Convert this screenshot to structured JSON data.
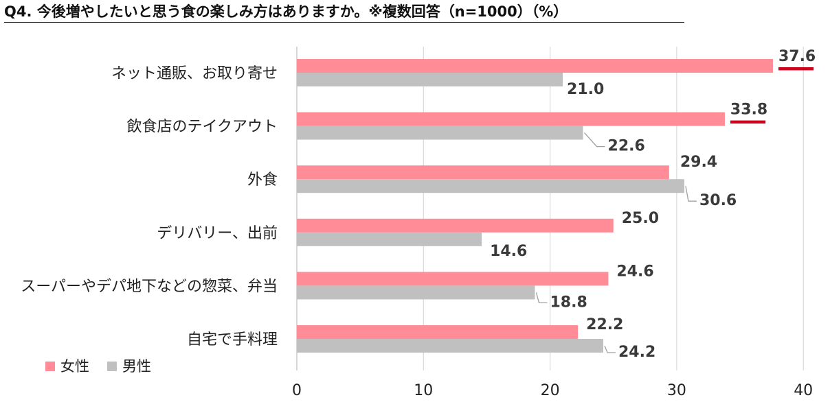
{
  "title": "Q4. 今後増やしたいと思う食の楽しみ方はありますか。※複数回答（n=1000）（%）",
  "chart_data": {
    "type": "bar",
    "orientation": "horizontal",
    "categories": [
      "ネット通販、お取り寄せ",
      "飲食店のテイクアウト",
      "外食",
      "デリバリー、出前",
      "スーパーやデパ地下などの惣菜、弁当",
      "自宅で手料理"
    ],
    "series": [
      {
        "name": "女性",
        "values": [
          37.6,
          33.8,
          29.4,
          25.0,
          24.6,
          22.2
        ],
        "color": "#ff8c96"
      },
      {
        "name": "男性",
        "values": [
          21.0,
          22.6,
          30.6,
          14.6,
          18.8,
          24.2
        ],
        "color": "#c0c0c0"
      }
    ],
    "value_labels": {
      "女性": [
        "37.6",
        "33.8",
        "29.4",
        "25.0",
        "24.6",
        "22.2"
      ],
      "男性": [
        "21.0",
        "22.6",
        "30.6",
        "14.6",
        "18.8",
        "24.2"
      ]
    },
    "highlighted": [
      {
        "series": "女性",
        "category": "ネット通販、お取り寄せ",
        "color": "#d0021b"
      },
      {
        "series": "女性",
        "category": "飲食店のテイクアウト",
        "color": "#d0021b"
      }
    ],
    "xlim": [
      0,
      40
    ],
    "xticks": [
      "0",
      "10",
      "20",
      "30",
      "40"
    ],
    "grid": true,
    "legend_position": "bottom-left"
  }
}
